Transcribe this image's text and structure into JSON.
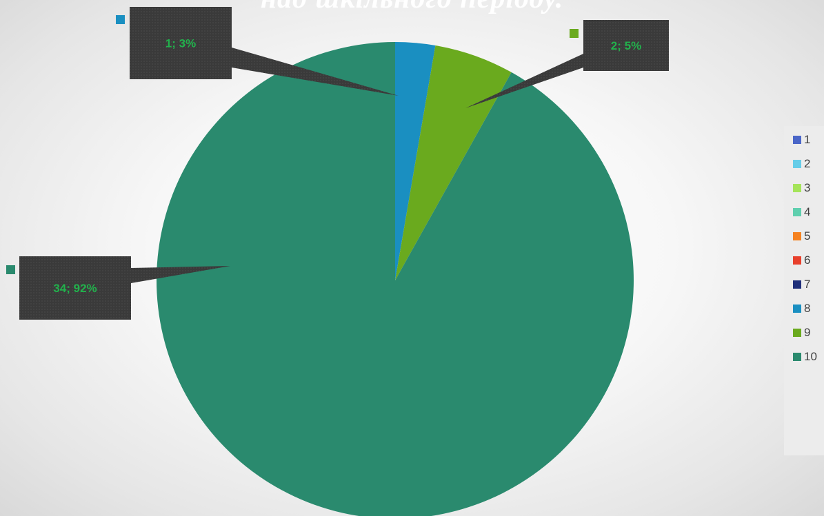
{
  "chart_data": {
    "type": "pie",
    "title": "над шкільного періоду.",
    "categories": [
      "1",
      "2",
      "3",
      "4",
      "5",
      "6",
      "7",
      "8",
      "9",
      "10"
    ],
    "values": [
      0,
      0,
      0,
      0,
      0,
      0,
      0,
      1,
      2,
      34
    ],
    "colors": [
      "#4a66c8",
      "#66cde8",
      "#a5e45a",
      "#5fcfae",
      "#f58220",
      "#e8402c",
      "#1f2f7a",
      "#1a8fc1",
      "#6aaa1e",
      "#2a8a6e"
    ],
    "data_labels": [
      {
        "category": "8",
        "text": "1; 3%"
      },
      {
        "category": "9",
        "text": "2; 5%"
      },
      {
        "category": "10",
        "text": "34; 92%"
      }
    ],
    "label_color": "#22b14c",
    "callout_color": "#3a3a3a",
    "legend": {
      "position": "right"
    }
  }
}
